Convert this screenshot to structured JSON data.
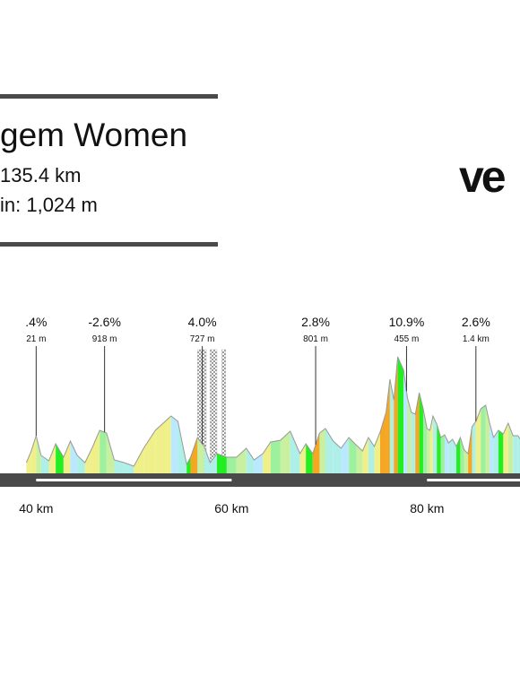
{
  "header": {
    "title": "gem Women",
    "distance": "135.4 km",
    "elevation_gain": "in: 1,024 m"
  },
  "brand": {
    "name": "ve"
  },
  "chart_data": {
    "type": "area",
    "title": "",
    "xlabel": "",
    "ylabel": "",
    "x_unit": "km",
    "x_tick_labels": [
      "40 km",
      "60 km",
      "80 km"
    ],
    "x_tick_values": [
      40,
      60,
      80
    ],
    "xlim": [
      39,
      92
    ],
    "ylim": [
      0,
      100
    ],
    "profile": {
      "x": [
        39.0,
        39.5,
        40.0,
        40.5,
        41.3,
        42.0,
        42.8,
        43.5,
        44.2,
        45.0,
        45.8,
        46.5,
        47.2,
        48.0,
        49.0,
        50.0,
        51.0,
        52.2,
        53.8,
        54.5,
        55.4,
        55.8,
        56.5,
        57.2,
        57.8,
        58.5,
        59.5,
        60.5,
        61.5,
        62.3,
        63.2,
        64.0,
        65.0,
        66.0,
        67.0,
        67.6,
        68.3,
        69.0,
        69.6,
        70.4,
        71.2,
        72.0,
        72.8,
        73.4,
        74.0,
        74.6,
        75.2,
        75.8,
        76.2,
        76.6,
        77.0,
        77.6,
        78.0,
        78.4,
        78.8,
        79.2,
        79.6,
        80.0,
        80.3,
        80.6,
        81.0,
        81.4,
        81.8,
        82.2,
        82.6,
        83.0,
        83.4,
        83.8,
        84.2,
        84.6,
        85.0,
        85.5,
        86.0,
        86.4,
        86.8,
        87.3,
        87.8,
        88.3,
        88.8,
        89.3,
        89.8,
        90.4,
        91.0,
        91.6,
        92.0
      ],
      "y": [
        12,
        25,
        42,
        20,
        14,
        33,
        18,
        36,
        20,
        12,
        30,
        48,
        45,
        15,
        12,
        8,
        28,
        48,
        64,
        58,
        10,
        18,
        40,
        30,
        12,
        22,
        18,
        18,
        28,
        15,
        22,
        35,
        37,
        47,
        22,
        33,
        22,
        45,
        50,
        36,
        28,
        40,
        31,
        25,
        40,
        30,
        46,
        68,
        105,
        82,
        130,
        115,
        84,
        68,
        66,
        90,
        72,
        50,
        48,
        64,
        55,
        40,
        43,
        34,
        38,
        30,
        40,
        26,
        22,
        52,
        58,
        72,
        76,
        56,
        40,
        48,
        44,
        56,
        42,
        42,
        34,
        42,
        30,
        36,
        32
      ]
    },
    "segment_grade_colors": [
      "#22ee22",
      "#9df09d",
      "#c8f0a0",
      "#ffffff",
      "#aef0e8",
      "#f0f08a",
      "#f5a623",
      "#b9e8ff"
    ],
    "climbs": [
      {
        "grade": ".4%",
        "length": "21 m",
        "km": 40.0
      },
      {
        "grade": "-2.6%",
        "length": "918 m",
        "km": 47.0
      },
      {
        "grade": "4.0%",
        "length": "727 m",
        "km": 57.0,
        "cobbled_sectors": [
          [
            56.5,
            57.4
          ],
          [
            57.8,
            58.5
          ],
          [
            59.0,
            59.4
          ]
        ]
      },
      {
        "grade": "2.8%",
        "length": "801 m",
        "km": 68.6
      },
      {
        "grade": "10.9%",
        "length": "455 m",
        "km": 77.9
      },
      {
        "grade": "2.6%",
        "length": "1.4 km",
        "km": 85.0
      }
    ]
  }
}
